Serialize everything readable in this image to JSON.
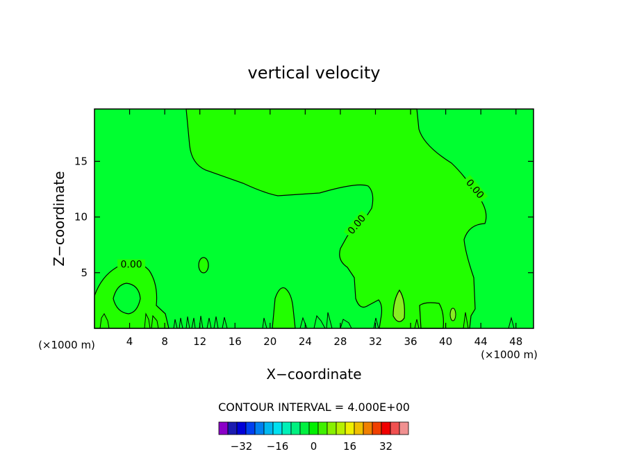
{
  "chart_data": {
    "type": "heatmap",
    "title": "vertical velocity",
    "xlabel": "X−coordinate",
    "ylabel": "Z−coordinate",
    "x_unit_left": "(×1000 m)",
    "x_unit_right": "(×1000 m)",
    "xlim": [
      0,
      50
    ],
    "ylim": [
      0,
      19.7
    ],
    "x_ticks": [
      4,
      8,
      12,
      16,
      20,
      24,
      28,
      32,
      36,
      40,
      44,
      48
    ],
    "x_tick_labels": [
      "4",
      "8",
      "12",
      "16",
      "20",
      "24",
      "28",
      "32",
      "36",
      "40",
      "44",
      "48"
    ],
    "y_ticks": [
      5,
      10,
      15
    ],
    "y_tick_labels": [
      "5",
      "10",
      "15"
    ],
    "contour_labels": [
      {
        "text": "0.00",
        "x": 4.2,
        "y": 5.7,
        "angle": 0
      },
      {
        "text": "0.00",
        "x": 29.9,
        "y": 9.3,
        "angle": -50
      },
      {
        "text": "0.00",
        "x": 43.3,
        "y": 12.5,
        "angle": 50
      }
    ],
    "contour_interval_text": "CONTOUR INTERVAL = 4.000E+00",
    "background_color": "#00ff30",
    "region_color": "#22ff00",
    "cell_color": "#88ee22",
    "colorbar": {
      "colors": [
        "#8b00c8",
        "#1b1bb0",
        "#0000d8",
        "#0040f0",
        "#0080f0",
        "#00b8f0",
        "#00e0f0",
        "#00f0b8",
        "#00f080",
        "#00f040",
        "#00f000",
        "#40f000",
        "#88f000",
        "#b8f000",
        "#f0f000",
        "#f0c000",
        "#f08000",
        "#f04000",
        "#f00000",
        "#f05050",
        "#f09090"
      ],
      "tick_labels": [
        "−32",
        "−16",
        "0",
        "16",
        "32"
      ],
      "tick_values": [
        -32,
        -16,
        0,
        16,
        32
      ],
      "value_min": -42,
      "value_max": 42
    }
  }
}
